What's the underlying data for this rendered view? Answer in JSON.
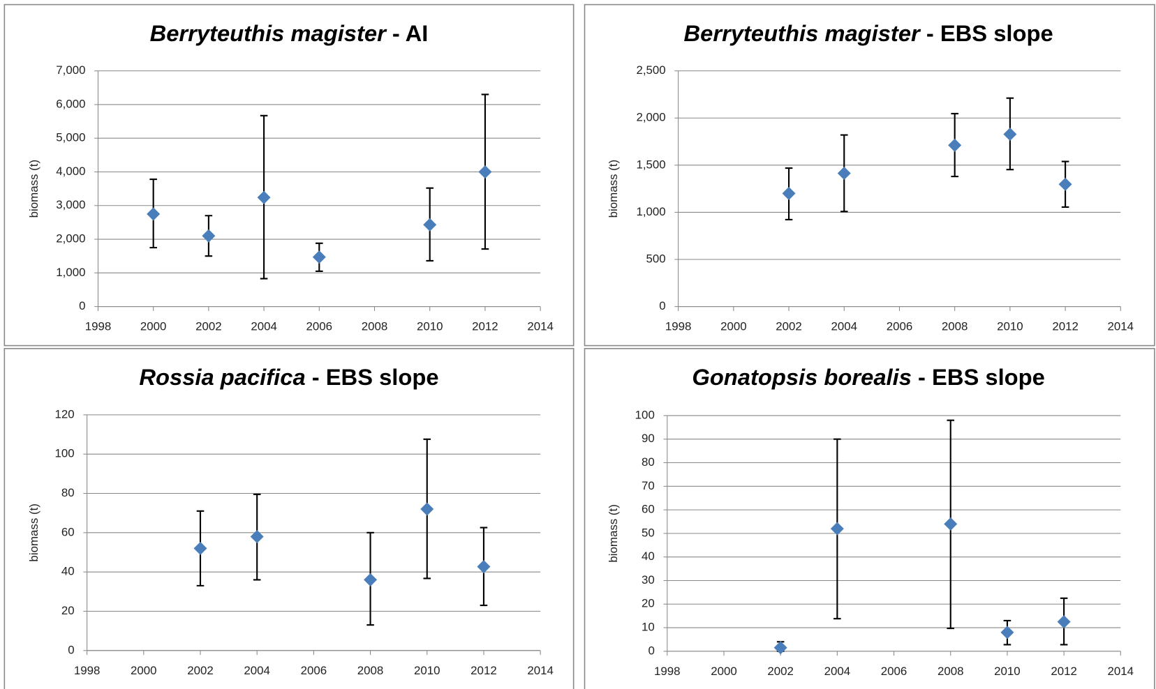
{
  "chart_data": [
    {
      "type": "scatter",
      "title_species": "Berryteuthis magister",
      "title_region": "- AI",
      "ylabel": "biomass (t)",
      "x": [
        2000,
        2002,
        2004,
        2006,
        2010,
        2012
      ],
      "values": [
        2750,
        2100,
        3240,
        1470,
        2430,
        4000
      ],
      "lower": [
        1750,
        1500,
        830,
        1050,
        1360,
        1710
      ],
      "upper": [
        3780,
        2700,
        5670,
        1880,
        3520,
        6300
      ],
      "color": "#4a7ebb",
      "grid": true,
      "xlim": [
        1998,
        2014
      ],
      "xticks": [
        1998,
        2000,
        2002,
        2004,
        2006,
        2008,
        2010,
        2012,
        2014
      ],
      "ylim": [
        0,
        7000
      ],
      "yticks": [
        0,
        {
          "value": 1000,
          "label": "1,000"
        },
        {
          "value": 2000,
          "label": "2,000"
        },
        {
          "value": 3000,
          "label": "3,000"
        },
        {
          "value": 4000,
          "label": "4,000"
        },
        {
          "value": 5000,
          "label": "5,000"
        },
        {
          "value": 6000,
          "label": "6,000"
        },
        {
          "value": 7000,
          "label": "7,000"
        }
      ]
    },
    {
      "type": "scatter",
      "title_species": "Berryteuthis magister",
      "title_region": "- EBS slope",
      "ylabel": "biomass (t)",
      "x": [
        2002,
        2004,
        2008,
        2010,
        2012
      ],
      "values": [
        1200,
        1414,
        1711,
        1828,
        1297
      ],
      "lower": [
        922,
        1008,
        1380,
        1453,
        1055
      ],
      "upper": [
        1469,
        1820,
        2047,
        2211,
        1539
      ],
      "color": "#4a7ebb",
      "grid": true,
      "xlim": [
        1998,
        2014
      ],
      "xticks": [
        1998,
        2000,
        2002,
        2004,
        2006,
        2008,
        2010,
        2012,
        2014
      ],
      "ylim": [
        0,
        2500
      ],
      "yticks": [
        0,
        500,
        {
          "value": 1000,
          "label": "1,000"
        },
        {
          "value": 1500,
          "label": "1,500"
        },
        {
          "value": 2000,
          "label": "2,000"
        },
        {
          "value": 2500,
          "label": "2,500"
        }
      ]
    },
    {
      "type": "scatter",
      "title_species": "Rossia pacifica",
      "title_region": "- EBS slope",
      "ylabel": "biomass (t)",
      "x": [
        2002,
        2004,
        2008,
        2010,
        2012
      ],
      "values": [
        52,
        58,
        36,
        72,
        42.7
      ],
      "lower": [
        33,
        36,
        13,
        36.7,
        23
      ],
      "upper": [
        71,
        79.5,
        60,
        107.6,
        62.6
      ],
      "color": "#4a7ebb",
      "grid": true,
      "xlim": [
        1998,
        2014
      ],
      "xticks": [
        1998,
        2000,
        2002,
        2004,
        2006,
        2008,
        2010,
        2012,
        2014
      ],
      "ylim": [
        0,
        120
      ],
      "yticks": [
        0,
        20,
        40,
        60,
        80,
        100,
        120
      ]
    },
    {
      "type": "scatter",
      "title_species": "Gonatopsis borealis",
      "title_region": "- EBS slope",
      "ylabel": "biomass (t)",
      "x": [
        2002,
        2004,
        2008,
        2010,
        2012
      ],
      "values": [
        1.5,
        52,
        54,
        8,
        12.5
      ],
      "lower": [
        0,
        13.8,
        9.7,
        2.8,
        2.8
      ],
      "upper": [
        4,
        90,
        98,
        13,
        22.5
      ],
      "color": "#4a7ebb",
      "grid": true,
      "xlim": [
        1998,
        2014
      ],
      "xticks": [
        1998,
        2000,
        2002,
        2004,
        2006,
        2008,
        2010,
        2012,
        2014
      ],
      "ylim": [
        0,
        100
      ],
      "yticks": [
        0,
        10,
        20,
        30,
        40,
        50,
        60,
        70,
        80,
        90,
        100
      ]
    }
  ]
}
